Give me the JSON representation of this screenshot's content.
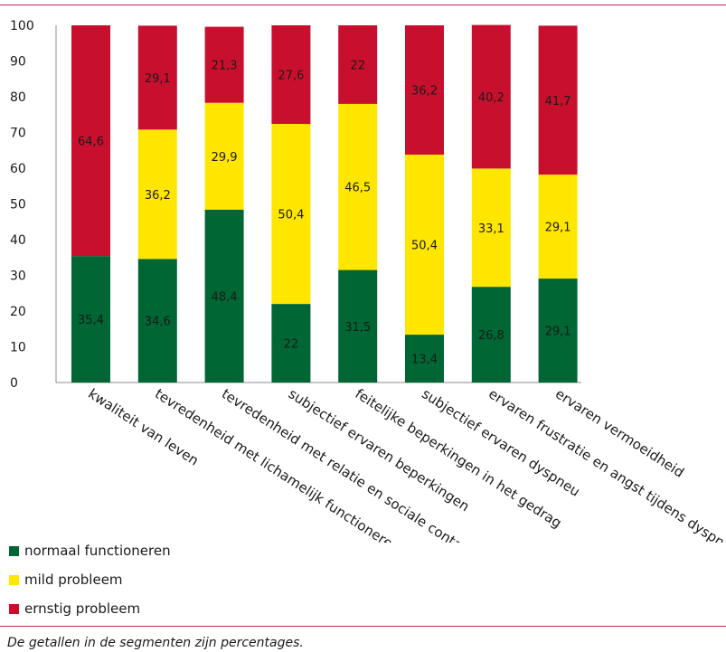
{
  "chart_data": {
    "type": "bar",
    "stacked": true,
    "categories": [
      "kwaliteit van leven",
      "tevredenheid met lichamelijk functioneren",
      "tevredenheid met relatie en sociale contacten",
      "subjectief ervaren beperkingen",
      "feitelijke beperkingen in het gedrag",
      "subjectief ervaren dyspneu",
      "ervaren frustratie en angst tijdens dyspneu",
      "ervaren vermoeidheid"
    ],
    "series": [
      {
        "name": "normaal functioneren",
        "color": "#006633",
        "values": [
          35.4,
          34.6,
          48.4,
          22,
          31.5,
          13.4,
          26.8,
          29.1
        ],
        "labels": [
          "35,4",
          "34,6",
          "48,4",
          "22",
          "31,5",
          "13,4",
          "26,8",
          "29,1"
        ]
      },
      {
        "name": "mild probleem",
        "color": "#ffe600",
        "values": [
          0,
          36.2,
          29.9,
          50.4,
          46.5,
          50.4,
          33.1,
          29.1
        ],
        "labels": [
          "",
          "36,2",
          "29,9",
          "50,4",
          "46,5",
          "50,4",
          "33,1",
          "29,1"
        ]
      },
      {
        "name": "ernstig probleem",
        "color": "#c8102e",
        "values": [
          64.6,
          29.1,
          21.3,
          27.6,
          22,
          36.2,
          40.2,
          41.7
        ],
        "labels": [
          "64,6",
          "29,1",
          "21,3",
          "27,6",
          "22",
          "36,2",
          "40,2",
          "41,7"
        ]
      }
    ],
    "y_ticks": [
      "0",
      "10",
      "20",
      "30",
      "40",
      "50",
      "60",
      "70",
      "80",
      "90",
      "100"
    ],
    "ylim": [
      0,
      100
    ],
    "grid": false,
    "legend_position": "bottom-left"
  },
  "footnote": "De getallen in de segmenten zijn percentages."
}
